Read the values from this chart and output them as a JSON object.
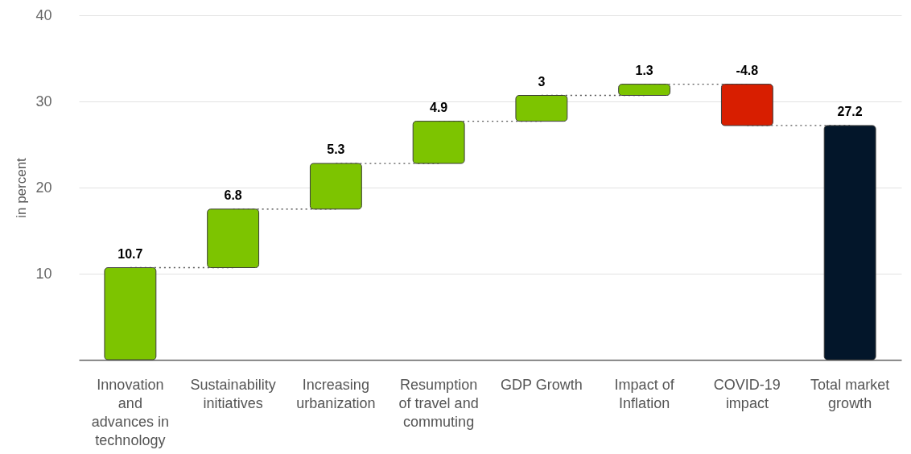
{
  "chart_data": {
    "type": "bar",
    "ylabel": "in percent",
    "categories": [
      "Innovation and advances in technology",
      "Sustainability initiatives",
      "Increasing urbanization",
      "Resumption of travel and commuting",
      "GDP Growth",
      "Impact of Inflation",
      "COVID-19 impact",
      "Total market growth"
    ],
    "values": [
      10.7,
      6.8,
      5.3,
      4.9,
      3,
      1.3,
      -4.8,
      27.2
    ],
    "base": [
      0,
      10.7,
      17.5,
      22.8,
      27.7,
      30.7,
      32,
      0
    ],
    "colors": [
      "#7dc400",
      "#7dc400",
      "#7dc400",
      "#7dc400",
      "#7dc400",
      "#7dc400",
      "#d81e00",
      "#03162a"
    ],
    "ylim": [
      0,
      40
    ],
    "yticks": [
      10,
      20,
      30,
      40
    ],
    "grid": "y",
    "data_labels": true
  }
}
